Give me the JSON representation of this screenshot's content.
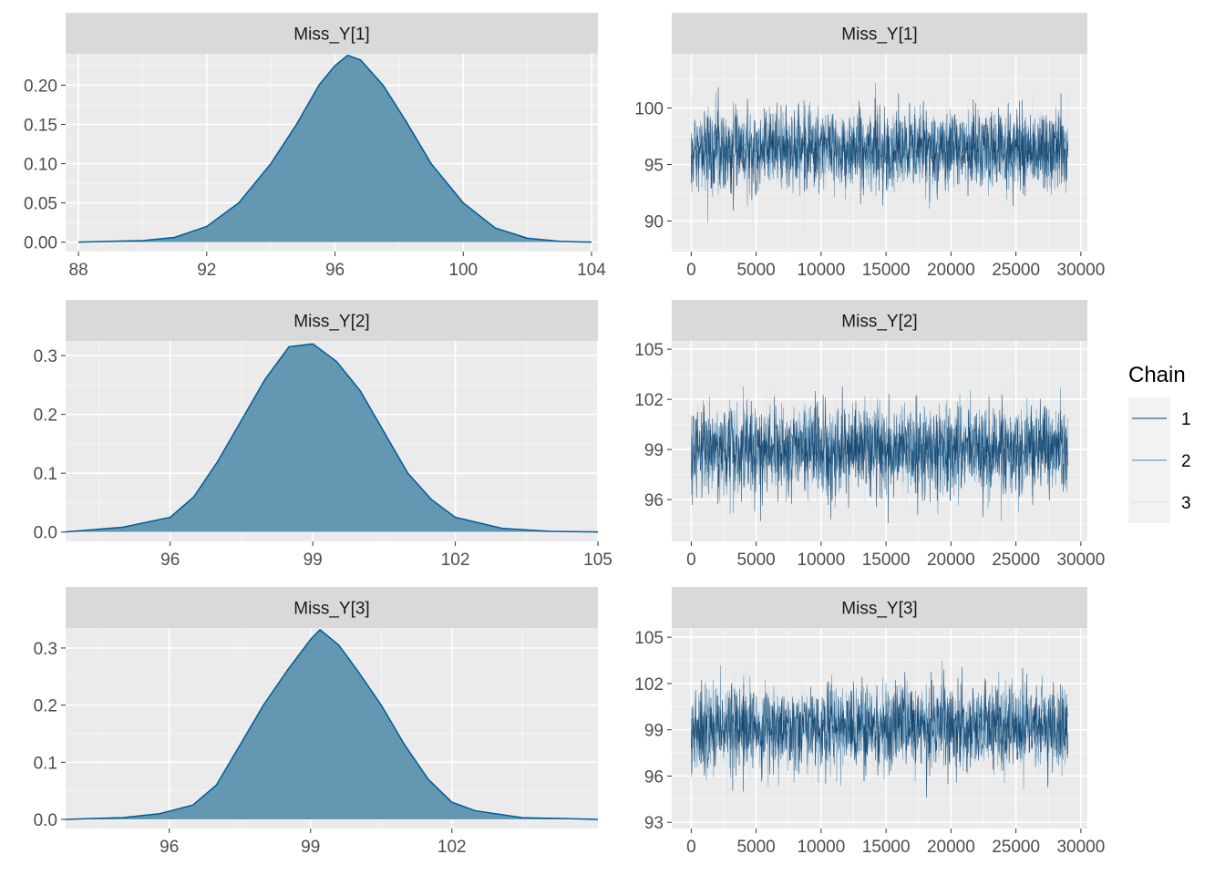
{
  "chart_data": [
    {
      "type": "area",
      "panel": "density",
      "strip_title": "Miss_Y[1]",
      "xlim": [
        87.6,
        104.2
      ],
      "ylim": [
        -0.012,
        0.24
      ],
      "x_ticks": [
        88,
        92,
        96,
        100,
        104
      ],
      "x_tick_labels": [
        "88",
        "92",
        "96",
        "100",
        "104"
      ],
      "y_ticks": [
        0.0,
        0.05,
        0.1,
        0.15,
        0.2
      ],
      "y_tick_labels": [
        "0.00",
        "0.05",
        "0.10",
        "0.15",
        "0.20"
      ],
      "x": [
        88,
        90,
        91,
        92,
        93,
        94,
        94.8,
        95.5,
        96,
        96.4,
        96.8,
        97.5,
        98.2,
        99,
        100,
        101,
        102,
        103,
        104
      ],
      "values": [
        0.0,
        0.002,
        0.006,
        0.02,
        0.05,
        0.1,
        0.15,
        0.2,
        0.225,
        0.238,
        0.232,
        0.2,
        0.155,
        0.1,
        0.05,
        0.018,
        0.005,
        0.001,
        0.0
      ]
    },
    {
      "type": "line",
      "panel": "trace",
      "strip_title": "Miss_Y[1]",
      "xlim": [
        -1500,
        30500
      ],
      "ylim": [
        87.3,
        104.8
      ],
      "x_ticks": [
        0,
        5000,
        10000,
        15000,
        20000,
        25000,
        30000
      ],
      "x_tick_labels": [
        "0",
        "5000",
        "10000",
        "15000",
        "20000",
        "25000",
        "30000"
      ],
      "y_ticks": [
        90,
        95,
        100
      ],
      "y_tick_labels": [
        "90",
        "95",
        "100"
      ],
      "n_iterations": 29000,
      "series": [
        {
          "name": "1",
          "mean": 96.4,
          "sd": 1.7,
          "min": 88.3,
          "max": 104.1
        },
        {
          "name": "2",
          "mean": 96.4,
          "sd": 1.7,
          "min": 88.5,
          "max": 103.5
        },
        {
          "name": "3",
          "mean": 96.4,
          "sd": 1.7,
          "min": 89.0,
          "max": 103.0
        }
      ]
    },
    {
      "type": "area",
      "panel": "density",
      "strip_title": "Miss_Y[2]",
      "xlim": [
        93.8,
        105.0
      ],
      "ylim": [
        -0.016,
        0.325
      ],
      "x_ticks": [
        96,
        99,
        102,
        105
      ],
      "x_tick_labels": [
        "96",
        "99",
        "102",
        "105"
      ],
      "y_ticks": [
        0.0,
        0.1,
        0.2,
        0.3
      ],
      "y_tick_labels": [
        "0.0",
        "0.1",
        "0.2",
        "0.3"
      ],
      "x": [
        93.8,
        95,
        96,
        96.5,
        97,
        97.5,
        98,
        98.5,
        99,
        99.5,
        100,
        100.5,
        101,
        101.5,
        102,
        103,
        104,
        105
      ],
      "values": [
        0.0,
        0.008,
        0.025,
        0.06,
        0.12,
        0.19,
        0.26,
        0.315,
        0.32,
        0.29,
        0.24,
        0.17,
        0.1,
        0.055,
        0.025,
        0.006,
        0.001,
        0.0
      ]
    },
    {
      "type": "line",
      "panel": "trace",
      "strip_title": "Miss_Y[2]",
      "xlim": [
        -1500,
        30500
      ],
      "ylim": [
        93.5,
        105.5
      ],
      "x_ticks": [
        0,
        5000,
        10000,
        15000,
        20000,
        25000,
        30000
      ],
      "x_tick_labels": [
        "0",
        "5000",
        "10000",
        "15000",
        "20000",
        "25000",
        "30000"
      ],
      "y_ticks": [
        96,
        99,
        102,
        105
      ],
      "y_tick_labels": [
        "96",
        "99",
        "102",
        "105"
      ],
      "n_iterations": 29000,
      "series": [
        {
          "name": "1",
          "mean": 99.0,
          "sd": 1.25,
          "min": 94.2,
          "max": 104.9
        },
        {
          "name": "2",
          "mean": 99.0,
          "sd": 1.25,
          "min": 94.5,
          "max": 104.6
        },
        {
          "name": "3",
          "mean": 99.0,
          "sd": 1.25,
          "min": 95.0,
          "max": 103.8
        }
      ]
    },
    {
      "type": "area",
      "panel": "density",
      "strip_title": "Miss_Y[3]",
      "xlim": [
        93.8,
        105.1
      ],
      "ylim": [
        -0.016,
        0.335
      ],
      "x_ticks": [
        96,
        99,
        102
      ],
      "x_tick_labels": [
        "96",
        "99",
        "102"
      ],
      "y_ticks": [
        0.0,
        0.1,
        0.2,
        0.3
      ],
      "y_tick_labels": [
        "0.0",
        "0.1",
        "0.2",
        "0.3"
      ],
      "x": [
        93.8,
        95,
        95.8,
        96.5,
        97,
        97.5,
        98,
        98.5,
        99,
        99.2,
        99.6,
        100,
        100.5,
        101,
        101.5,
        102,
        102.5,
        103.5,
        105.1
      ],
      "values": [
        0.0,
        0.003,
        0.01,
        0.025,
        0.06,
        0.13,
        0.2,
        0.26,
        0.315,
        0.332,
        0.305,
        0.26,
        0.2,
        0.13,
        0.07,
        0.03,
        0.015,
        0.003,
        0.0
      ]
    },
    {
      "type": "line",
      "panel": "trace",
      "strip_title": "Miss_Y[3]",
      "xlim": [
        -1500,
        30500
      ],
      "ylim": [
        92.6,
        105.6
      ],
      "x_ticks": [
        0,
        5000,
        10000,
        15000,
        20000,
        25000,
        30000
      ],
      "x_tick_labels": [
        "0",
        "5000",
        "10000",
        "15000",
        "20000",
        "25000",
        "30000"
      ],
      "y_ticks": [
        93,
        96,
        99,
        102,
        105
      ],
      "y_tick_labels": [
        "93",
        "96",
        "99",
        "102",
        "105"
      ],
      "n_iterations": 29000,
      "series": [
        {
          "name": "1",
          "mean": 99.2,
          "sd": 1.3,
          "min": 93.2,
          "max": 104.8
        },
        {
          "name": "2",
          "mean": 99.2,
          "sd": 1.3,
          "min": 93.8,
          "max": 104.4
        },
        {
          "name": "3",
          "mean": 99.2,
          "sd": 1.3,
          "min": 94.5,
          "max": 103.6
        }
      ]
    }
  ],
  "legend": {
    "title": "Chain",
    "items": [
      {
        "label": "1",
        "color": "#0b3b66"
      },
      {
        "label": "2",
        "color": "#4a88b0"
      },
      {
        "label": "3",
        "color": "#d1e1ec"
      }
    ]
  },
  "colors": {
    "panel_background": "#ebebeb",
    "strip_background": "#d9d9d9",
    "grid_major": "#ffffff",
    "density_fill": "#6497b1",
    "density_line": "#005b96"
  }
}
